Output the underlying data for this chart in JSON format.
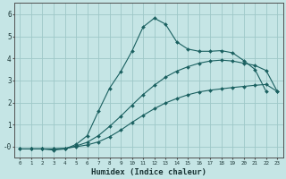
{
  "xlabel": "Humidex (Indice chaleur)",
  "bg_color": "#c5e5e5",
  "grid_color": "#9ec8c8",
  "line_color": "#1a6060",
  "xlim": [
    -0.5,
    23.5
  ],
  "ylim": [
    -0.5,
    6.5
  ],
  "yticks": [
    0,
    1,
    2,
    3,
    4,
    5,
    6
  ],
  "ytick_labels": [
    "-0",
    "1",
    "2",
    "3",
    "4",
    "5",
    "6"
  ],
  "xticks": [
    0,
    1,
    2,
    3,
    4,
    5,
    6,
    7,
    8,
    9,
    10,
    11,
    12,
    13,
    14,
    15,
    16,
    17,
    18,
    19,
    20,
    21,
    22,
    23
  ],
  "line1_x": [
    0,
    1,
    2,
    3,
    4,
    5,
    6,
    7,
    8,
    9,
    10,
    11,
    12,
    13,
    14,
    15,
    16,
    17,
    18,
    19,
    20,
    21,
    22,
    23
  ],
  "line1_y": [
    -0.1,
    -0.1,
    -0.1,
    -0.1,
    -0.08,
    0.0,
    0.08,
    0.22,
    0.45,
    0.75,
    1.1,
    1.42,
    1.72,
    1.98,
    2.18,
    2.35,
    2.48,
    2.56,
    2.62,
    2.68,
    2.73,
    2.78,
    2.82,
    2.5
  ],
  "line2_x": [
    0,
    1,
    2,
    3,
    4,
    5,
    6,
    7,
    8,
    9,
    10,
    11,
    12,
    13,
    14,
    15,
    16,
    17,
    18,
    19,
    20,
    21,
    22,
    23
  ],
  "line2_y": [
    -0.1,
    -0.1,
    -0.1,
    -0.1,
    -0.08,
    0.03,
    0.2,
    0.5,
    0.92,
    1.38,
    1.88,
    2.36,
    2.78,
    3.15,
    3.42,
    3.62,
    3.78,
    3.88,
    3.92,
    3.88,
    3.78,
    3.68,
    3.45,
    2.5
  ],
  "line3_x": [
    1,
    2,
    3,
    4,
    5,
    6,
    7,
    8,
    9,
    10,
    11,
    12,
    13,
    14,
    15,
    16,
    17,
    18,
    19,
    20,
    21,
    22
  ],
  "line3_y": [
    -0.1,
    -0.1,
    -0.15,
    -0.1,
    0.1,
    0.5,
    1.6,
    2.65,
    3.4,
    4.32,
    5.42,
    5.82,
    5.55,
    4.75,
    4.42,
    4.32,
    4.32,
    4.35,
    4.25,
    3.9,
    3.5,
    2.5
  ]
}
